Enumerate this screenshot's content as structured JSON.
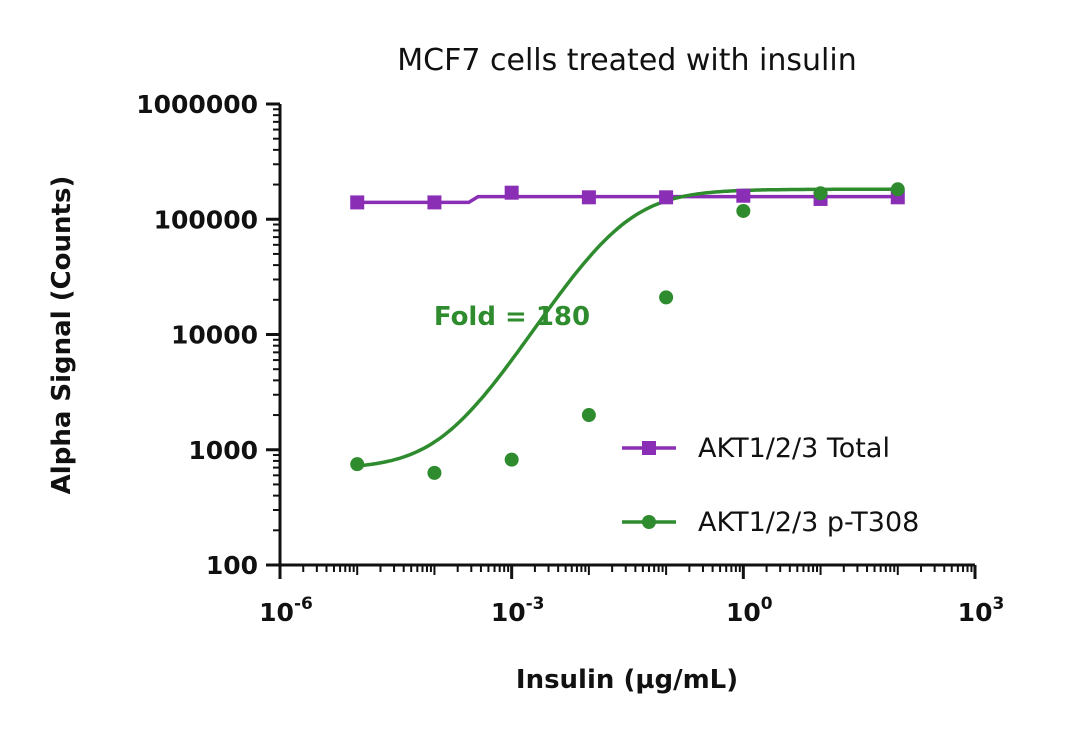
{
  "chart_data": {
    "type": "scatter",
    "title": "MCF7 cells treated with insulin",
    "xlabel": "Insulin (µg/mL)",
    "ylabel": "Alpha Signal (Counts)",
    "x_scale": "log",
    "y_scale": "log",
    "xlim": [
      1e-06,
      1000
    ],
    "ylim": [
      100,
      1000000
    ],
    "x_ticks": [
      {
        "value": 1e-06,
        "base": "10",
        "exp": "-6"
      },
      {
        "value": 0.001,
        "base": "10",
        "exp": "-3"
      },
      {
        "value": 1,
        "base": "10",
        "exp": "0"
      },
      {
        "value": 1000,
        "base": "10",
        "exp": "3"
      }
    ],
    "y_ticks": [
      {
        "value": 100,
        "label": "100"
      },
      {
        "value": 1000,
        "label": "1000"
      },
      {
        "value": 10000,
        "label": "10000"
      },
      {
        "value": 100000,
        "label": "100000"
      },
      {
        "value": 1000000,
        "label": "1000000"
      }
    ],
    "grid": false,
    "legend_position": "bottom-right",
    "series": [
      {
        "name": "AKT1/2/3 Total",
        "color": "#8a2fb5",
        "marker": "square",
        "x": [
          1e-05,
          0.0001,
          0.001,
          0.01,
          0.1,
          1,
          10,
          100
        ],
        "y": [
          140000,
          140000,
          170000,
          155000,
          155000,
          160000,
          150000,
          155000
        ],
        "fit": "step",
        "fit_low": 140000,
        "fit_high": 157000,
        "fit_step_x": 0.00032
      },
      {
        "name": "AKT1/2/3 p-T308",
        "color": "#2e8b2e",
        "marker": "circle",
        "x": [
          1e-05,
          0.0001,
          0.001,
          0.01,
          0.1,
          1,
          10,
          100
        ],
        "y": [
          750,
          630,
          820,
          2000,
          21000,
          118000,
          168000,
          182000
        ],
        "fit": "sigmoid",
        "fit_bottom": 680,
        "fit_top": 182000,
        "fit_ec50": 0.028,
        "fit_hill": 1.05
      }
    ],
    "annotations": [
      {
        "text": "Fold = 180",
        "color": "#2e8b2e"
      }
    ]
  }
}
